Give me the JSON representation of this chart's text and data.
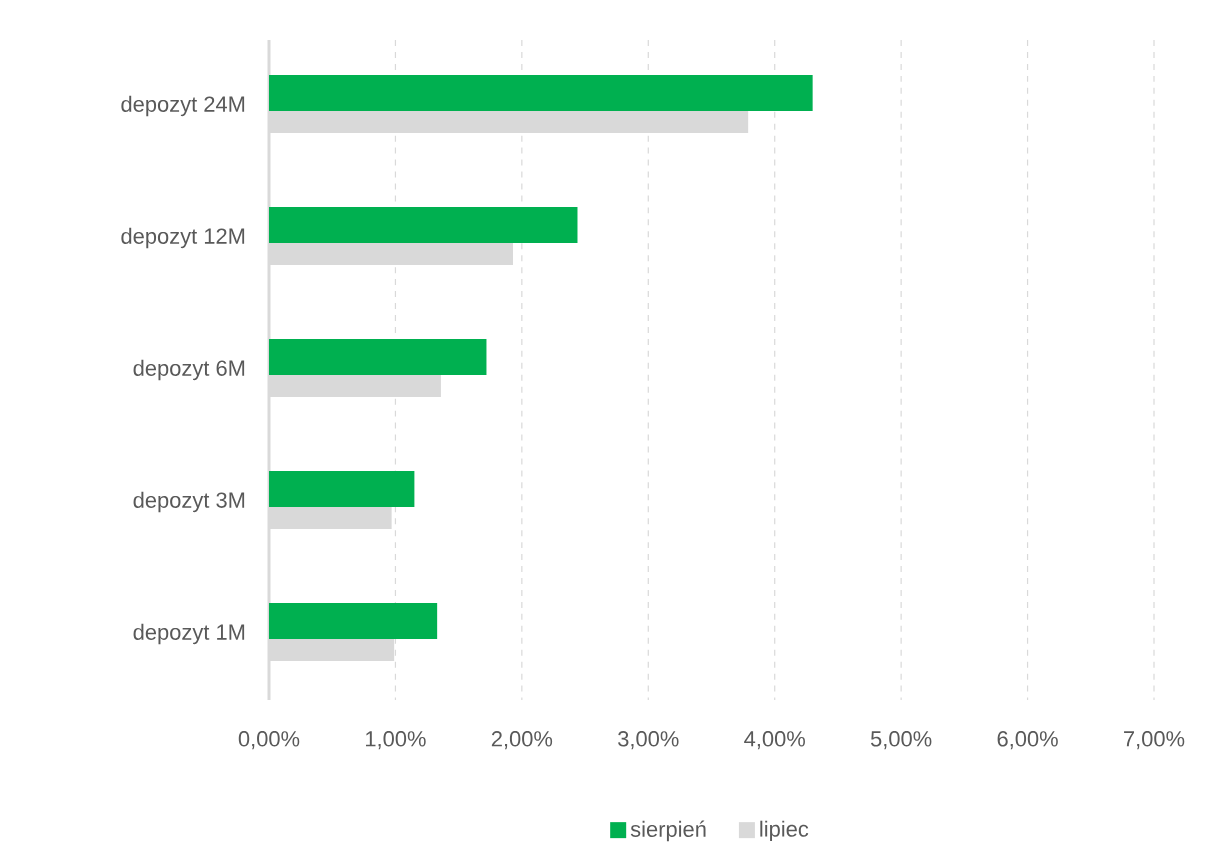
{
  "chart_data": {
    "type": "bar",
    "orientation": "horizontal",
    "categories": [
      "depozyt 24M",
      "depozyt 12M",
      "depozyt 6M",
      "depozyt 3M",
      "depozyt 1M"
    ],
    "series": [
      {
        "name": "sierpień",
        "color": "#00b050",
        "values": [
          4.3,
          2.44,
          1.72,
          1.15,
          1.33
        ]
      },
      {
        "name": "lipiec",
        "color": "#d9d9d9",
        "values": [
          3.79,
          1.93,
          1.36,
          0.97,
          0.99
        ]
      }
    ],
    "xlim": [
      0,
      7
    ],
    "xticks": [
      {
        "value": 0,
        "label": "0,00%"
      },
      {
        "value": 1,
        "label": "1,00%"
      },
      {
        "value": 2,
        "label": "2,00%"
      },
      {
        "value": 3,
        "label": "3,00%"
      },
      {
        "value": 4,
        "label": "4,00%"
      },
      {
        "value": 5,
        "label": "5,00%"
      },
      {
        "value": 6,
        "label": "6,00%"
      },
      {
        "value": 7,
        "label": "7,00%"
      }
    ],
    "grid": "x",
    "legend": "bottom"
  }
}
